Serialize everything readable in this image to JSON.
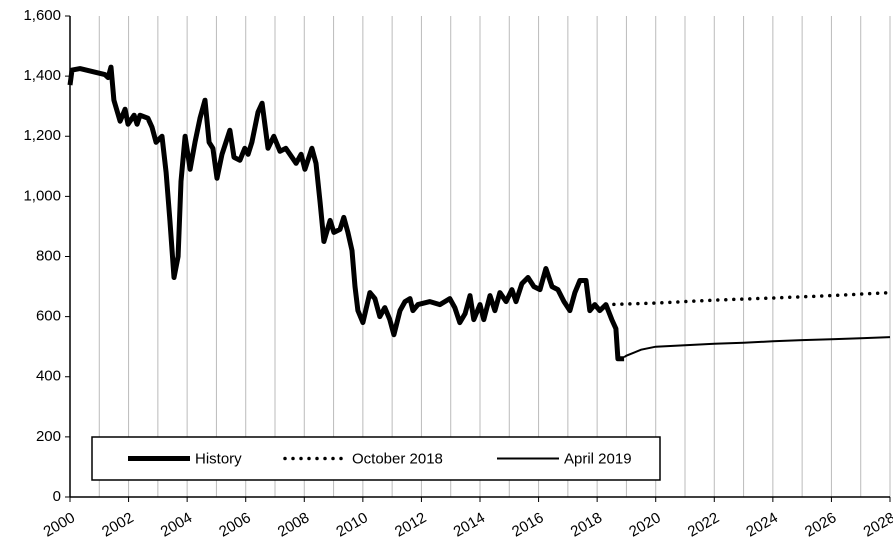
{
  "chart_data": {
    "type": "line",
    "xlim": [
      2000,
      2028
    ],
    "xticks": [
      2000,
      2002,
      2004,
      2006,
      2008,
      2010,
      2012,
      2014,
      2016,
      2018,
      2020,
      2022,
      2024,
      2026,
      2028
    ],
    "ylim": [
      0,
      1600
    ],
    "yticks": [
      0,
      200,
      400,
      600,
      800,
      {
        "value": 1000,
        "label": "1,000"
      },
      {
        "value": 1200,
        "label": "1,200"
      },
      {
        "value": 1400,
        "label": "1,400"
      },
      {
        "value": 1600,
        "label": "1,600"
      }
    ],
    "grid": true,
    "legend": "bottom",
    "series": [
      {
        "name": "History",
        "color": "#000000",
        "style": "thick",
        "x": [
          2000.0,
          2000.07,
          2000.34,
          2001.19,
          2001.3,
          2001.4,
          2001.5,
          2001.71,
          2001.88,
          2001.98,
          2002.19,
          2002.29,
          2002.39,
          2002.66,
          2002.8,
          2002.94,
          2003.14,
          2003.28,
          2003.41,
          2003.55,
          2003.69,
          2003.79,
          2003.93,
          2004.1,
          2004.27,
          2004.44,
          2004.61,
          2004.75,
          2004.88,
          2005.02,
          2005.19,
          2005.46,
          2005.6,
          2005.8,
          2005.97,
          2006.08,
          2006.21,
          2006.42,
          2006.56,
          2006.76,
          2006.96,
          2007.17,
          2007.37,
          2007.58,
          2007.72,
          2007.89,
          2008.02,
          2008.26,
          2008.4,
          2008.54,
          2008.67,
          2008.88,
          2009.01,
          2009.22,
          2009.35,
          2009.49,
          2009.63,
          2009.73,
          2009.83,
          2010.0,
          2010.24,
          2010.41,
          2010.58,
          2010.75,
          2010.92,
          2011.06,
          2011.27,
          2011.44,
          2011.61,
          2011.71,
          2011.88,
          2012.29,
          2012.63,
          2012.97,
          2013.14,
          2013.31,
          2013.49,
          2013.66,
          2013.79,
          2014.0,
          2014.13,
          2014.34,
          2014.51,
          2014.68,
          2014.89,
          2015.09,
          2015.23,
          2015.43,
          2015.64,
          2015.84,
          2016.05,
          2016.25,
          2016.46,
          2016.66,
          2016.87,
          2017.07,
          2017.24,
          2017.41,
          2017.62,
          2017.75,
          2017.92,
          2018.09,
          2018.3,
          2018.5,
          2018.64,
          2018.71,
          2018.92
        ],
        "values": [
          1370,
          1420,
          1425,
          1405,
          1395,
          1430,
          1320,
          1250,
          1290,
          1240,
          1270,
          1240,
          1270,
          1260,
          1230,
          1180,
          1200,
          1080,
          920,
          730,
          800,
          1050,
          1200,
          1090,
          1180,
          1260,
          1320,
          1180,
          1160,
          1060,
          1140,
          1220,
          1130,
          1120,
          1160,
          1140,
          1180,
          1280,
          1310,
          1160,
          1200,
          1150,
          1160,
          1130,
          1110,
          1140,
          1090,
          1160,
          1110,
          980,
          850,
          920,
          880,
          890,
          930,
          880,
          820,
          700,
          620,
          580,
          680,
          660,
          600,
          630,
          590,
          540,
          620,
          650,
          660,
          620,
          640,
          650,
          640,
          660,
          630,
          580,
          610,
          670,
          590,
          640,
          590,
          670,
          620,
          680,
          650,
          690,
          650,
          710,
          730,
          700,
          690,
          760,
          700,
          690,
          650,
          620,
          680,
          720,
          720,
          620,
          640,
          620,
          640,
          590,
          560,
          460,
          460
        ]
      },
      {
        "name": "October 2018",
        "color": "#000000",
        "style": "dotted",
        "x": [
          2018.3,
          2020,
          2022,
          2024,
          2026,
          2028
        ],
        "values": [
          640,
          645,
          655,
          662,
          670,
          680
        ]
      },
      {
        "name": "April 2019",
        "color": "#000000",
        "style": "thin",
        "x": [
          2018.92,
          2019.0,
          2019.5,
          2020,
          2021,
          2022,
          2023,
          2024,
          2025,
          2026,
          2027,
          2028
        ],
        "values": [
          465,
          470,
          490,
          500,
          505,
          510,
          513,
          518,
          522,
          525,
          528,
          532
        ]
      }
    ]
  }
}
